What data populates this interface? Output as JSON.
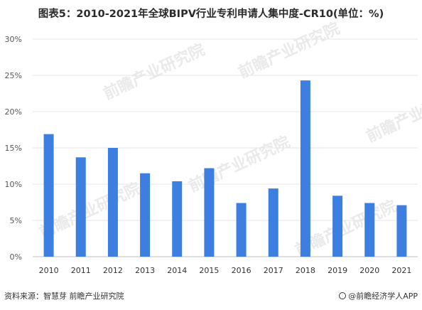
{
  "chart_data": {
    "type": "bar",
    "title": "图表5：2010-2021年全球BIPV行业专利申请人集中度-CR10(单位：%)",
    "xlabel": "",
    "ylabel": "",
    "categories": [
      "2010",
      "2011",
      "2012",
      "2013",
      "2014",
      "2015",
      "2016",
      "2017",
      "2018",
      "2019",
      "2020",
      "2021"
    ],
    "values": [
      16.9,
      13.7,
      15.0,
      11.5,
      10.4,
      12.2,
      7.4,
      9.4,
      24.3,
      8.4,
      7.4,
      7.1
    ],
    "ylim": [
      0,
      30
    ],
    "yticks": [
      "0%",
      "5%",
      "10%",
      "15%",
      "20%",
      "25%",
      "30%"
    ],
    "ytick_values": [
      0,
      5,
      10,
      15,
      20,
      25,
      30
    ],
    "bar_color": "#3d7fe0",
    "grid": true,
    "legend": "none"
  },
  "watermark": "前瞻产业研究院",
  "footer": {
    "source": "资料来源：智慧芽 前瞻产业研究院",
    "brand": "@前瞻经济学人APP"
  }
}
